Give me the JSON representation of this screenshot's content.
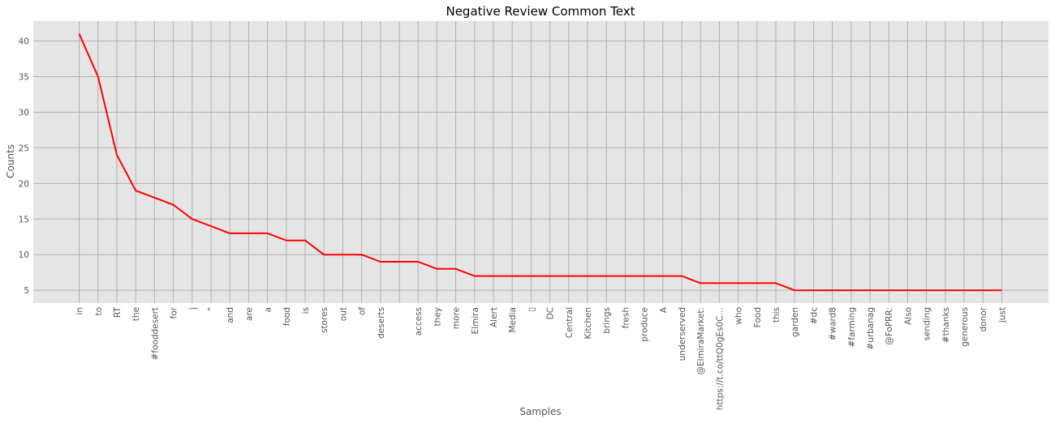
{
  "chart_data": {
    "type": "line",
    "title": "Negative Review Common Text",
    "xlabel": "Samples",
    "ylabel": "Counts",
    "ylim": [
      3.2,
      42.8
    ],
    "yticks": [
      5,
      10,
      15,
      20,
      25,
      30,
      35,
      40
    ],
    "grid": true,
    "line_color": "#ff0000",
    "background_color": "#e5e5e5",
    "categories": [
      "in",
      "to",
      "RT",
      "the",
      "#fooddesert",
      "for",
      "|",
      "\"",
      "and",
      "are",
      "a",
      "food",
      "is",
      "stores",
      "out",
      "of",
      "deserts",
      "",
      "access",
      "they",
      "more",
      "Elmira",
      "Alert",
      "Media",
      "▯",
      "DC",
      "Central",
      "Kitchen",
      "brings",
      "fresh",
      "produce",
      "A",
      "underserved",
      "@ElmiraMarket:",
      "https://t.co/ttQ0gEs0C…",
      "who",
      "Food",
      "this",
      "garden",
      "#dc",
      "#ward8",
      "#farming",
      "#urbanag",
      "@FoPRR:",
      "Also",
      "sending",
      "#thanks",
      "generous",
      "donor",
      "just"
    ],
    "values": [
      41,
      35,
      24,
      19,
      18,
      17,
      15,
      14,
      13,
      13,
      13,
      12,
      12,
      10,
      10,
      10,
      9,
      9,
      9,
      8,
      8,
      7,
      7,
      7,
      7,
      7,
      7,
      7,
      7,
      7,
      7,
      7,
      7,
      6,
      6,
      6,
      6,
      6,
      5,
      5,
      5,
      5,
      5,
      5,
      5,
      5,
      5,
      5,
      5,
      5
    ]
  }
}
